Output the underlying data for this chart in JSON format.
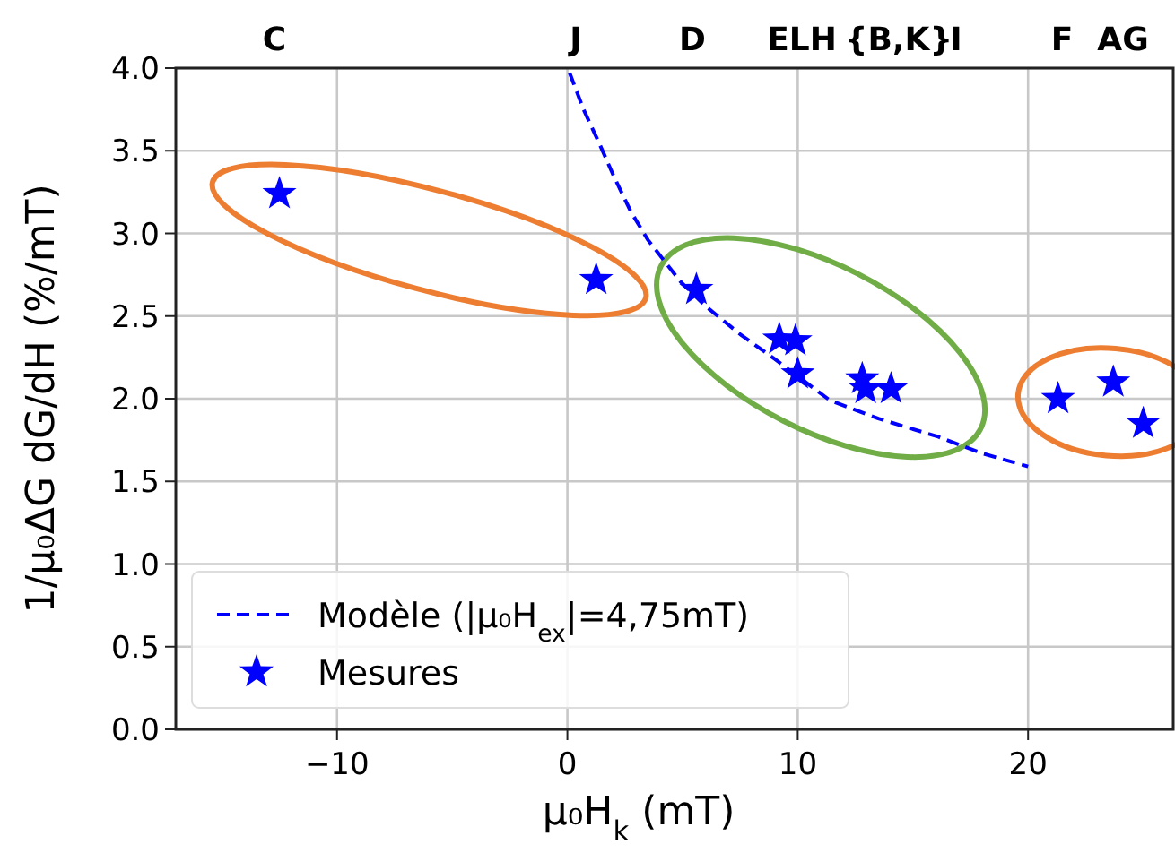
{
  "chart_data": {
    "type": "scatter",
    "xlabel": "μ₀H$_{k}$ (mT)",
    "ylabel": "1/μ₀ΔG dG/dH (%/mT)",
    "xlim": [
      -17,
      26.3
    ],
    "ylim": [
      0,
      4
    ],
    "xticks": [
      {
        "value": -10,
        "label": "−10"
      },
      0,
      10,
      20
    ],
    "yticks": [
      {
        "value": 0,
        "label": "0.0"
      },
      {
        "value": 0.5,
        "label": "0.5"
      },
      {
        "value": 1,
        "label": "1.0"
      },
      {
        "value": 1.5,
        "label": "1.5"
      },
      {
        "value": 2,
        "label": "2.0"
      },
      {
        "value": 2.5,
        "label": "2.5"
      },
      {
        "value": 3,
        "label": "3.0"
      },
      {
        "value": 3.5,
        "label": "3.5"
      },
      {
        "value": 4,
        "label": "4.0"
      }
    ],
    "annotations": [
      "C",
      "J",
      "D",
      "ELH",
      "{B,K}",
      "I",
      "F",
      "AG"
    ],
    "grid": true,
    "legend": "bottom left",
    "series": [
      {
        "name": "Modèle (|μ₀H$_{ex}$|=4,75mT)",
        "type": "line",
        "color": "#0000ff",
        "line_style": "dashed",
        "marker": "none",
        "x": [
          0.1,
          0.7,
          1.4,
          2.0,
          2.76,
          3.5,
          4.9,
          6,
          7.5,
          9,
          11.4,
          13.5,
          16.1,
          18,
          20
        ],
        "values": [
          3.97,
          3.75,
          3.54,
          3.35,
          3.13,
          2.96,
          2.71,
          2.56,
          2.39,
          2.24,
          1.99,
          1.88,
          1.77,
          1.67,
          1.59
        ]
      },
      {
        "name": "Mesures",
        "color": "#0000ff",
        "marker": "star",
        "x": [
          -12.5,
          1.25,
          5.6,
          9.2,
          9.9,
          10.0,
          12.8,
          12.95,
          14.05,
          21.3,
          23.7,
          25.0
        ],
        "values": [
          3.24,
          2.72,
          2.66,
          2.36,
          2.35,
          2.15,
          2.12,
          2.06,
          2.06,
          2.0,
          2.1,
          1.85
        ]
      }
    ]
  }
}
